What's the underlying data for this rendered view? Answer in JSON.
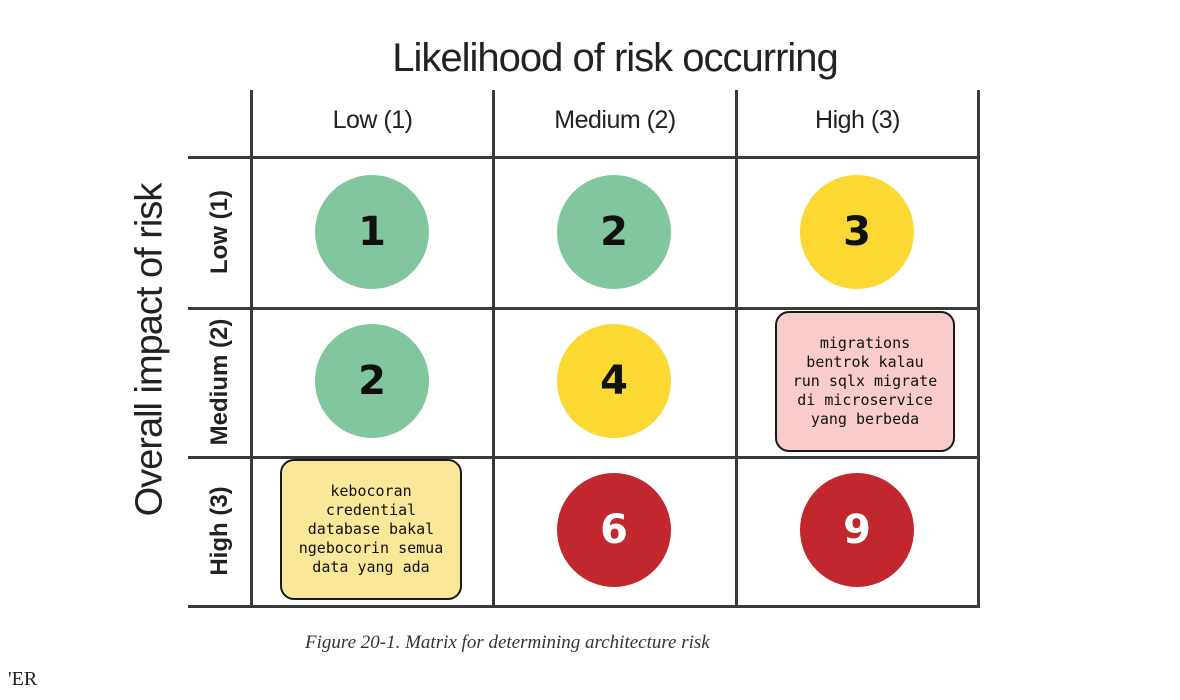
{
  "title_top": "Likelihood of risk occurring",
  "title_side": "Overall impact of risk",
  "columns": [
    "Low (1)",
    "Medium (2)",
    "High (3)"
  ],
  "rows": [
    "Low (1)",
    "Medium (2)",
    "High (3)"
  ],
  "colors": {
    "green": "#82c6a0",
    "yellow": "#fbd832",
    "red": "#c1272d",
    "note_pink": "#f9cbcb",
    "note_yellow": "#f9e79a"
  },
  "cells": [
    [
      "1",
      "2",
      "3"
    ],
    [
      "2",
      "4",
      ""
    ],
    [
      "",
      "6",
      "9"
    ]
  ],
  "notes": {
    "medium_high": [
      "migrations",
      "bentrok kalau",
      "run sqlx migrate",
      "di microservice",
      "yang berbeda"
    ],
    "high_low": [
      "kebocoran",
      "credential",
      "database bakal",
      "ngebocorin semua",
      "data yang ada"
    ]
  },
  "caption": "Figure 20-1. Matrix for determining architecture risk",
  "corner_text": "'ER"
}
